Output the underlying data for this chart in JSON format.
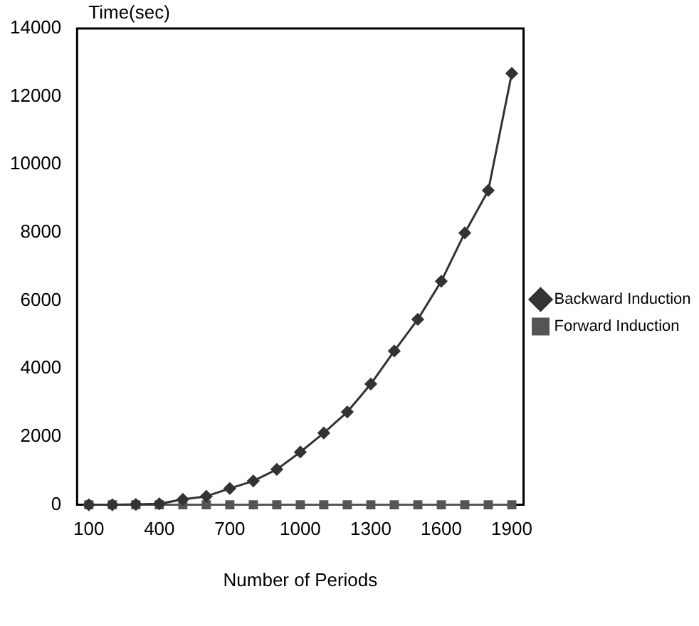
{
  "chart_data": {
    "type": "line",
    "ylabel": "Time(sec)",
    "xlabel": "Number of Periods",
    "categories": [
      "100",
      null,
      null,
      "400",
      null,
      null,
      "700",
      null,
      null,
      "1000",
      null,
      null,
      "1300",
      null,
      null,
      "1600",
      null,
      null,
      "1900"
    ],
    "series": [
      {
        "name": "Backward Induction",
        "color": "#333333",
        "marker": "diamond",
        "values": [
          0,
          0,
          10,
          30,
          160,
          250,
          480,
          700,
          1040,
          1550,
          2110,
          2730,
          3550,
          4520,
          5450,
          6570,
          7990,
          9240,
          12680
        ]
      },
      {
        "name": "Forward Induction",
        "color": "#555555",
        "marker": "square",
        "values": [
          0,
          0,
          0,
          0,
          0,
          0,
          0,
          0,
          0,
          0,
          0,
          0,
          0,
          0,
          0,
          0,
          0,
          0,
          0
        ]
      }
    ],
    "ylim": [
      0,
      14000
    ],
    "yticks": [
      0,
      2000,
      4000,
      6000,
      8000,
      10000,
      12000,
      14000
    ],
    "grid": false,
    "legend": "right",
    "line_style": "solid"
  }
}
